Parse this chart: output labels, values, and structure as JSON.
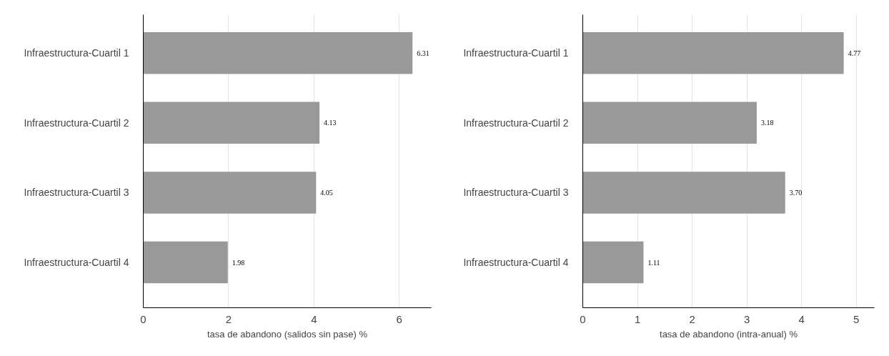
{
  "chart_data": [
    {
      "type": "bar",
      "orientation": "horizontal",
      "categories": [
        "Infraestructura-Cuartil 1",
        "Infraestructura-Cuartil 2",
        "Infraestructura-Cuartil 3",
        "Infraestructura-Cuartil 4"
      ],
      "values": [
        6.31,
        4.13,
        4.05,
        1.98
      ],
      "value_labels": [
        "6.31",
        "4.13",
        "4.05",
        "1.98"
      ],
      "color": "#999999",
      "xlabel": "tasa de abandono (salidos sin pase) %",
      "xlim": [
        0,
        6.75
      ],
      "xticks": [
        0,
        2,
        4,
        6
      ],
      "grid": "x"
    },
    {
      "type": "bar",
      "orientation": "horizontal",
      "categories": [
        "Infraestructura-Cuartil 1",
        "Infraestructura-Cuartil 2",
        "Infraestructura-Cuartil 3",
        "Infraestructura-Cuartil 4"
      ],
      "values": [
        4.77,
        3.18,
        3.7,
        1.11
      ],
      "value_labels": [
        "4.77",
        "3.18",
        "3.70",
        "1.11"
      ],
      "color": "#999999",
      "xlabel": "tasa de abandono (intra-anual) %",
      "xlim": [
        0,
        5.33
      ],
      "xticks": [
        0,
        1,
        2,
        3,
        4,
        5
      ],
      "grid": "x"
    }
  ]
}
